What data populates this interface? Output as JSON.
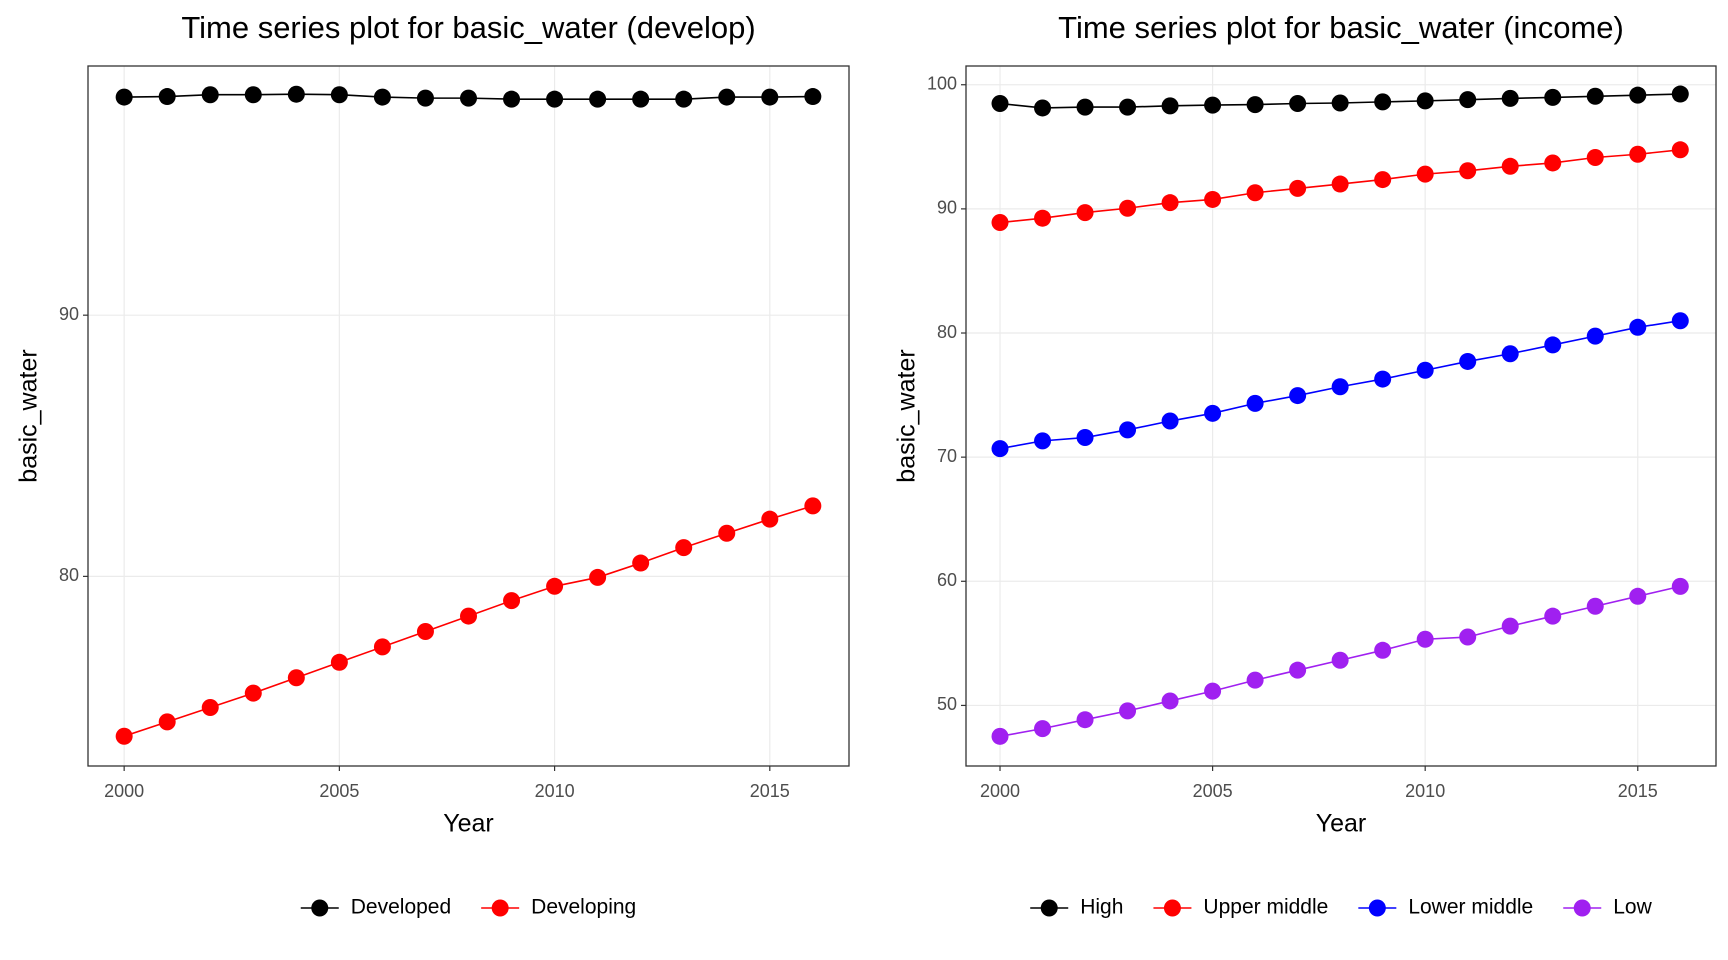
{
  "chart_data": [
    {
      "type": "line",
      "title": "Time series plot for basic_water (develop)",
      "x_label": "Year",
      "y_label": "basic_water",
      "x": [
        2000,
        2001,
        2002,
        2003,
        2004,
        2005,
        2006,
        2007,
        2008,
        2009,
        2010,
        2011,
        2012,
        2013,
        2014,
        2015,
        2016
      ],
      "series": [
        {
          "name": "Developed",
          "color": "#000000",
          "values": [
            98.35,
            98.37,
            98.44,
            98.44,
            98.46,
            98.44,
            98.35,
            98.31,
            98.31,
            98.27,
            98.27,
            98.27,
            98.27,
            98.27,
            98.35,
            98.35,
            98.37
          ]
        },
        {
          "name": "Developing",
          "color": "#ff0000",
          "values": [
            73.88,
            74.43,
            74.98,
            75.53,
            76.12,
            76.71,
            77.3,
            77.89,
            78.48,
            79.07,
            79.62,
            79.96,
            80.51,
            81.1,
            81.65,
            82.19,
            82.7
          ]
        }
      ],
      "xlim": [
        1999.16,
        2016.84
      ],
      "xticks": [
        2000,
        2005,
        2010,
        2015
      ],
      "ylim": [
        72.74,
        99.54
      ],
      "yticks": [
        80,
        90
      ],
      "grid": true,
      "legend": "bottom"
    },
    {
      "type": "line",
      "title": "Time series plot for basic_water (income)",
      "x_label": "Year",
      "y_label": "basic_water",
      "x": [
        2000,
        2001,
        2002,
        2003,
        2004,
        2005,
        2006,
        2007,
        2008,
        2009,
        2010,
        2011,
        2012,
        2013,
        2014,
        2015,
        2016
      ],
      "series": [
        {
          "name": "High",
          "color": "#000000",
          "values": [
            98.49,
            98.13,
            98.2,
            98.2,
            98.3,
            98.36,
            98.4,
            98.49,
            98.53,
            98.62,
            98.7,
            98.8,
            98.9,
            98.98,
            99.07,
            99.16,
            99.25
          ]
        },
        {
          "name": "Upper middle",
          "color": "#ff0000",
          "values": [
            88.9,
            89.25,
            89.7,
            90.05,
            90.5,
            90.76,
            91.3,
            91.65,
            92.0,
            92.36,
            92.8,
            93.07,
            93.43,
            93.7,
            94.14,
            94.4,
            94.76
          ]
        },
        {
          "name": "Lower middle",
          "color": "#0000ff",
          "values": [
            70.69,
            71.31,
            71.58,
            72.2,
            72.91,
            73.53,
            74.33,
            74.96,
            75.67,
            76.29,
            77.0,
            77.71,
            78.33,
            79.04,
            79.75,
            80.46,
            80.99
          ]
        },
        {
          "name": "Low",
          "color": "#a020f0",
          "values": [
            47.51,
            48.13,
            48.85,
            49.56,
            50.36,
            51.15,
            52.04,
            52.84,
            53.64,
            54.44,
            55.33,
            55.51,
            56.39,
            57.19,
            57.99,
            58.79,
            59.59
          ]
        }
      ],
      "xlim": [
        1999.2,
        2016.84
      ],
      "xticks": [
        2000,
        2005,
        2010,
        2015
      ],
      "ylim": [
        45.12,
        101.51
      ],
      "yticks": [
        50,
        60,
        70,
        80,
        90,
        100
      ],
      "grid": true,
      "legend": "bottom"
    }
  ]
}
